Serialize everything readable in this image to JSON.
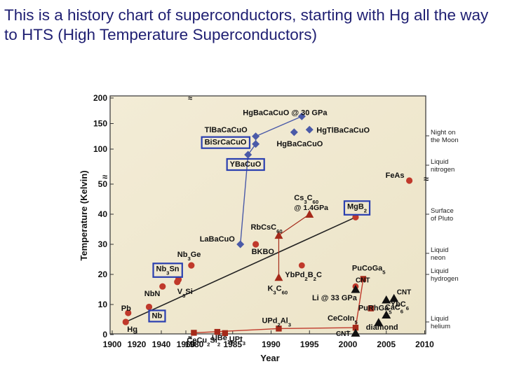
{
  "slide": {
    "title": "This is a history chart of superconductors, starting with Hg all the way to HTS (High Temperature Superconductors)"
  },
  "colors": {
    "plot_bg": "#f6f0dc",
    "element_red": "#c0392b",
    "cuprate_blue": "#4a5aa8",
    "heavy_fermion_red": "#a52a1a",
    "carbon_black": "#111111",
    "box_blue": "#2a3fb0",
    "line_black": "#222222",
    "line_red": "#c0392b"
  },
  "chart_data": {
    "type": "scatter",
    "xlabel": "Year",
    "ylabel": "Temperature (Kelvin)",
    "xlim": [
      1900,
      2010
    ],
    "ylim": [
      0,
      200
    ],
    "y_scale": "broken",
    "x_ticks": [
      "1900",
      "1920",
      "1940",
      "1960",
      "1980",
      "1985",
      "1990",
      "1995",
      "2000",
      "2005",
      "2010"
    ],
    "y_ticks": [
      "0",
      "10",
      "20",
      "30",
      "40",
      "50",
      "100",
      "150",
      "200"
    ],
    "reference_labels": [
      {
        "text": "Night on the Moon",
        "y": 126
      },
      {
        "text": "Liquid nitrogen",
        "y": 77
      },
      {
        "text": "Surface of Pluto",
        "y": 40
      },
      {
        "text": "Liquid neon",
        "y": 27
      },
      {
        "text": "Liquid hydrogen",
        "y": 20
      },
      {
        "text": "Liquid helium",
        "y": 4.2
      }
    ],
    "series": [
      {
        "group": "elements_and_compounds",
        "points": [
          {
            "label": "Hg",
            "x": 1911,
            "y": 4.2
          },
          {
            "label": "Pb",
            "x": 1913,
            "y": 7.2
          },
          {
            "label": "Nb",
            "x": 1930,
            "y": 9.2
          },
          {
            "label": "NbN",
            "x": 1941,
            "y": 16
          },
          {
            "label": "V3Si",
            "x": 1953,
            "y": 17.5
          },
          {
            "label": "Nb3Sn",
            "x": 1954,
            "y": 18.3
          },
          {
            "label": "Nb3Ge",
            "x": 1973,
            "y": 23
          },
          {
            "label": "BKBO",
            "x": 1988,
            "y": 30
          },
          {
            "label": "MgB2",
            "x": 2001,
            "y": 39
          },
          {
            "label": "FeAs",
            "x": 2008,
            "y": 55
          }
        ]
      },
      {
        "group": "cuprates",
        "points": [
          {
            "label": "LaBaCuO",
            "x": 1986,
            "y": 30
          },
          {
            "label": "YBaCuO",
            "x": 1987,
            "y": 92
          },
          {
            "label": "BiSrCaCuO",
            "x": 1988,
            "y": 110
          },
          {
            "label": "TlBaCaCuO",
            "x": 1988,
            "y": 125
          },
          {
            "label": "HgBaCaCuO",
            "x": 1993,
            "y": 133
          },
          {
            "label": "HgTlBaCaCuO",
            "x": 1995,
            "y": 138
          },
          {
            "label": "HgBaCaCuO @ 30 GPa",
            "x": 1994,
            "y": 164
          }
        ]
      },
      {
        "group": "fullerenes",
        "points": [
          {
            "label": "K3C60",
            "x": 1991,
            "y": 19
          },
          {
            "label": "RbCsC60",
            "x": 1991,
            "y": 33
          },
          {
            "label": "Cs3C60 @ 1.4GPa",
            "x": 1995,
            "y": 40
          }
        ]
      },
      {
        "group": "heavy_fermion",
        "points": [
          {
            "label": "CeCu2Si2",
            "x": 1979,
            "y": 0.6
          },
          {
            "label": "UBe13",
            "x": 1983,
            "y": 0.9
          },
          {
            "label": "UPt3",
            "x": 1984,
            "y": 0.5
          },
          {
            "label": "UPd2Al3",
            "x": 1991,
            "y": 2
          },
          {
            "label": "CeCoIn5",
            "x": 2001,
            "y": 2.3
          },
          {
            "label": "PuRhGa5",
            "x": 2003,
            "y": 8.7
          },
          {
            "label": "PuCoGa5",
            "x": 2002,
            "y": 18.5
          },
          {
            "label": "YbPd2B2C",
            "x": 1994,
            "y": 23
          },
          {
            "label": "Li @ 33 GPa",
            "x": 2001,
            "y": 16
          }
        ]
      },
      {
        "group": "carbon",
        "points": [
          {
            "label": "CNT",
            "x": 2001,
            "y": 15
          },
          {
            "label": "CNT",
            "x": 2006,
            "y": 12
          },
          {
            "label": "CaC6",
            "x": 2005,
            "y": 11.5
          },
          {
            "label": "YbC6",
            "x": 2005,
            "y": 6.5
          },
          {
            "label": "diamond",
            "x": 2004,
            "y": 4
          },
          {
            "label": "CNT",
            "x": 2001,
            "y": 0.5
          }
        ]
      }
    ]
  }
}
